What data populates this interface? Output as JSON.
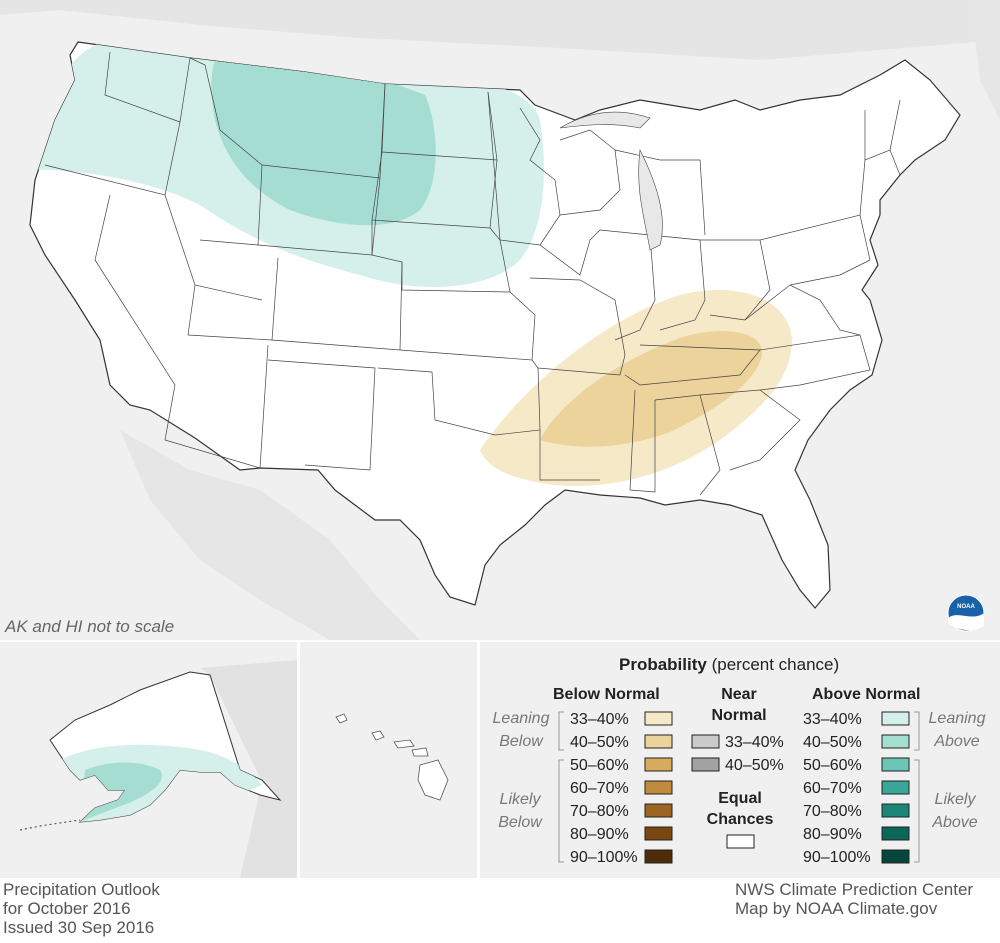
{
  "scale_note": "AK and HI not to scale",
  "title_lines": [
    "Precipitation Outlook",
    "for October 2016",
    "Issued 30 Sep 2016"
  ],
  "credit_lines": [
    "NWS Climate Prediction Center",
    "Map by NOAA Climate.gov"
  ],
  "logo_text": "NOAA",
  "legend": {
    "heading_bold": "Probability",
    "heading_rest": " (percent chance)",
    "below_header": "Below Normal",
    "near_header_1": "Near",
    "near_header_2": "Normal",
    "above_header": "Above Normal",
    "leaning_below_1": "Leaning",
    "leaning_below_2": "Below",
    "likely_below_1": "Likely",
    "likely_below_2": "Below",
    "leaning_above_1": "Leaning",
    "leaning_above_2": "Above",
    "likely_above_1": "Likely",
    "likely_above_2": "Above",
    "equal_1": "Equal",
    "equal_2": "Chances",
    "below_items": [
      {
        "label": "33–40%",
        "color": "#f6e9c8"
      },
      {
        "label": "40–50%",
        "color": "#ecd29b"
      },
      {
        "label": "50–60%",
        "color": "#d8aa5c"
      },
      {
        "label": "60–70%",
        "color": "#c28a3c"
      },
      {
        "label": "70–80%",
        "color": "#9e6421"
      },
      {
        "label": "80–90%",
        "color": "#7a4712"
      },
      {
        "label": "90–100%",
        "color": "#4e2c07"
      }
    ],
    "near_items": [
      {
        "label": "33–40%",
        "color": "#cacaca"
      },
      {
        "label": "40–50%",
        "color": "#a3a3a3"
      }
    ],
    "above_items": [
      {
        "label": "33–40%",
        "color": "#d5efea"
      },
      {
        "label": "40–50%",
        "color": "#a6ddd3"
      },
      {
        "label": "50–60%",
        "color": "#6cc5b5"
      },
      {
        "label": "60–70%",
        "color": "#3aa697"
      },
      {
        "label": "70–80%",
        "color": "#1d8577"
      },
      {
        "label": "80–90%",
        "color": "#0c6659"
      },
      {
        "label": "90–100%",
        "color": "#05463c"
      }
    ],
    "equal_color": "#ffffff"
  }
}
